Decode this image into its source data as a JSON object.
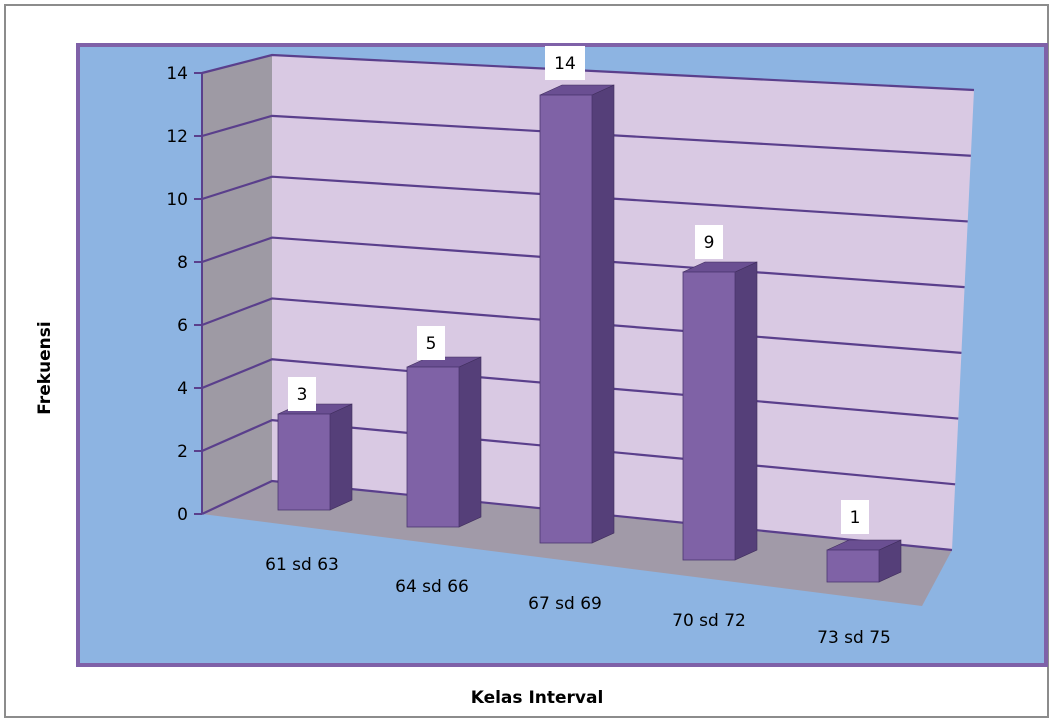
{
  "chart_data": {
    "type": "bar",
    "categories": [
      "61 sd 63",
      "64 sd 66",
      "67 sd 69",
      "70 sd 72",
      "73 sd 75"
    ],
    "values": [
      3,
      5,
      14,
      9,
      1
    ],
    "xlabel": "Kelas Interval",
    "ylabel": "Frekuensi",
    "ylim": [
      0,
      14
    ],
    "yticks": [
      0,
      2,
      4,
      6,
      8,
      10,
      12,
      14
    ],
    "grid": true,
    "data_labels": true,
    "legend": "none",
    "style": "3d-column",
    "colors": {
      "plot_area_bg": "#8db4e2",
      "plot_area_border": "#7f61a8",
      "back_wall": "#d9c9e3",
      "side_wall": "#9e9aa4",
      "floor": "#a19aa8",
      "gridline": "#5a3f8c",
      "bar_front": "#7f62a6",
      "bar_side": "#553f79",
      "bar_top": "#6a4f92"
    }
  }
}
